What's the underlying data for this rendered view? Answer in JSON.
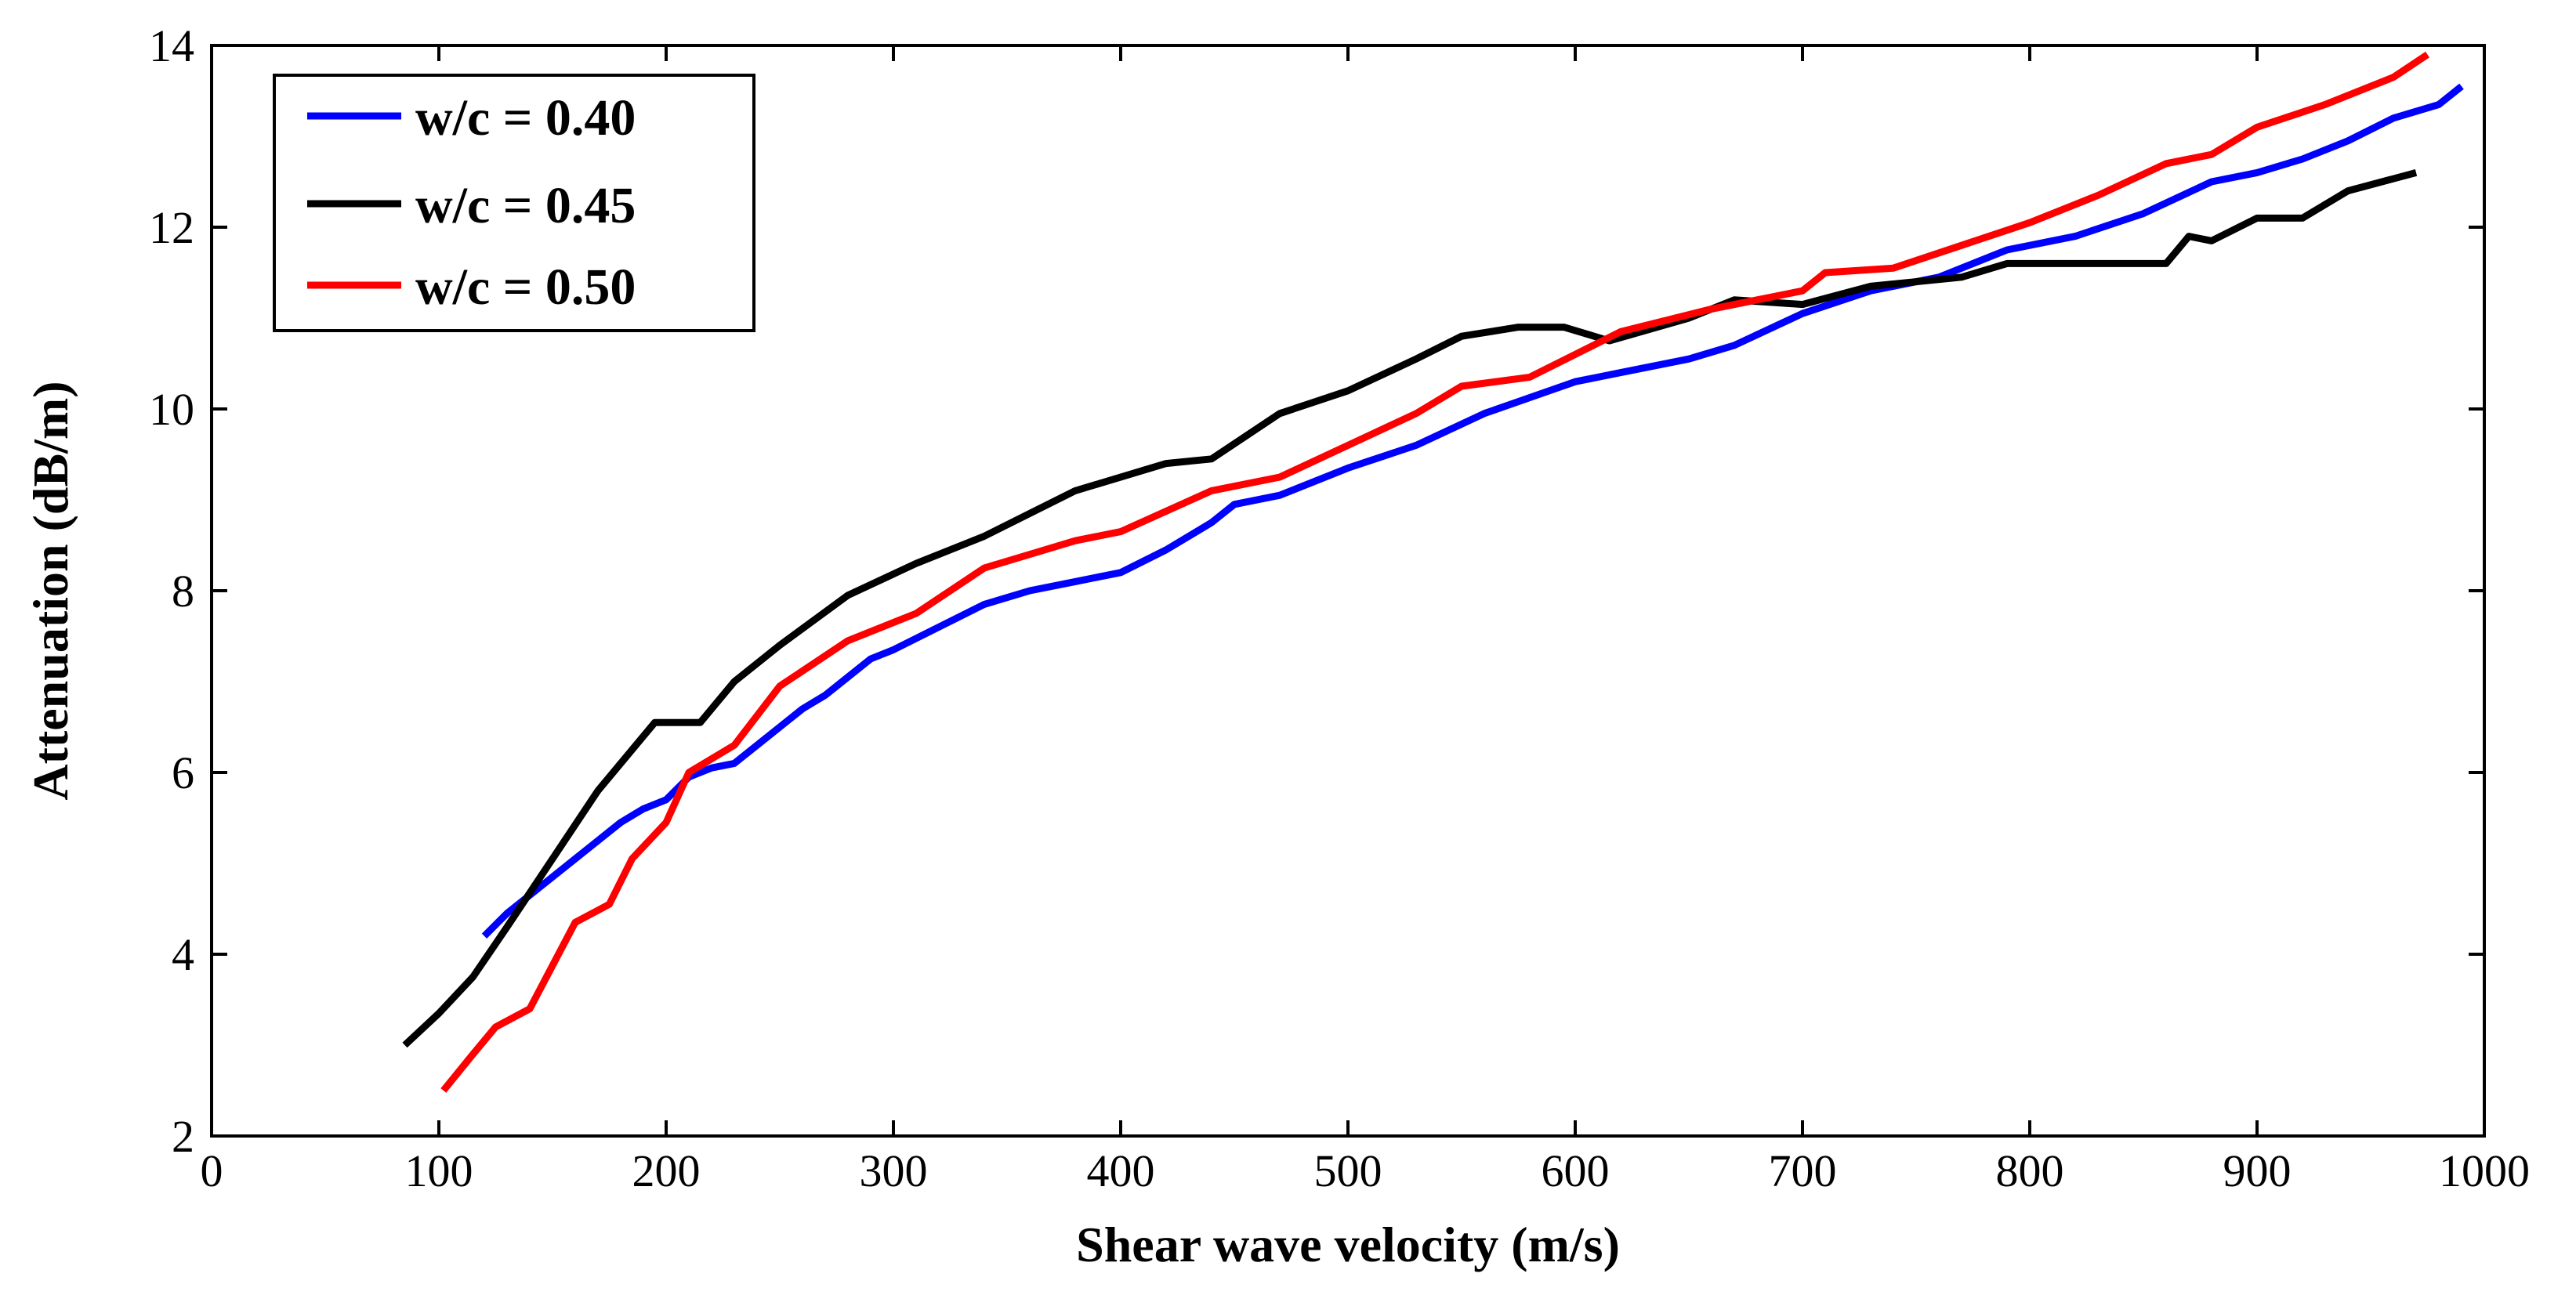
{
  "chart_data": {
    "type": "line",
    "title": "",
    "xlabel": "Shear wave velocity (m/s)",
    "ylabel": "Attenuation (dB/m)",
    "xlim": [
      0,
      1000
    ],
    "ylim": [
      2,
      14
    ],
    "xticks": [
      0,
      100,
      200,
      300,
      400,
      500,
      600,
      700,
      800,
      900,
      1000
    ],
    "yticks": [
      2,
      4,
      6,
      8,
      10,
      12,
      14
    ],
    "grid": false,
    "legend_position": "top-left",
    "series": [
      {
        "name": "w/c = 0.40",
        "color": "#0000ff",
        "x": [
          120,
          130,
          140,
          150,
          160,
          170,
          180,
          190,
          200,
          210,
          220,
          230,
          240,
          250,
          260,
          270,
          280,
          290,
          300,
          320,
          340,
          360,
          380,
          400,
          420,
          440,
          450,
          470,
          500,
          530,
          560,
          600,
          620,
          650,
          670,
          700,
          730,
          760,
          790,
          820,
          850,
          880,
          900,
          920,
          940,
          960,
          980,
          990
        ],
        "y": [
          4.2,
          4.45,
          4.65,
          4.85,
          5.05,
          5.25,
          5.45,
          5.6,
          5.7,
          5.95,
          6.05,
          6.1,
          6.3,
          6.5,
          6.7,
          6.85,
          7.05,
          7.25,
          7.35,
          7.6,
          7.85,
          8.0,
          8.1,
          8.2,
          8.45,
          8.75,
          8.95,
          9.05,
          9.35,
          9.6,
          9.95,
          10.3,
          10.4,
          10.55,
          10.7,
          11.05,
          11.3,
          11.45,
          11.75,
          11.9,
          12.15,
          12.5,
          12.6,
          12.75,
          12.95,
          13.2,
          13.35,
          13.55
        ]
      },
      {
        "name": "w/c = 0.45",
        "color": "#000000",
        "x": [
          85,
          100,
          115,
          130,
          150,
          170,
          195,
          215,
          230,
          250,
          280,
          310,
          340,
          380,
          420,
          440,
          470,
          500,
          530,
          550,
          575,
          595,
          615,
          650,
          670,
          700,
          730,
          770,
          790,
          860,
          870,
          880,
          900,
          920,
          940,
          970
        ],
        "y": [
          3.0,
          3.35,
          3.75,
          4.3,
          5.05,
          5.8,
          6.55,
          6.55,
          7.0,
          7.4,
          7.95,
          8.3,
          8.6,
          9.1,
          9.4,
          9.45,
          9.95,
          10.2,
          10.55,
          10.8,
          10.9,
          10.9,
          10.75,
          11.0,
          11.2,
          11.15,
          11.35,
          11.45,
          11.6,
          11.6,
          11.9,
          11.85,
          12.1,
          12.1,
          12.4,
          12.6
        ]
      },
      {
        "name": "w/c = 0.50",
        "color": "#ff0000",
        "x": [
          102,
          115,
          125,
          140,
          160,
          175,
          185,
          200,
          210,
          230,
          250,
          280,
          310,
          340,
          380,
          400,
          440,
          470,
          500,
          530,
          550,
          580,
          620,
          660,
          700,
          710,
          740,
          770,
          800,
          830,
          860,
          880,
          900,
          930,
          960,
          975
        ],
        "y": [
          2.5,
          2.9,
          3.2,
          3.4,
          4.35,
          4.55,
          5.05,
          5.45,
          6.0,
          6.3,
          6.95,
          7.45,
          7.75,
          8.25,
          8.55,
          8.65,
          9.1,
          9.25,
          9.6,
          9.95,
          10.25,
          10.35,
          10.85,
          11.1,
          11.3,
          11.5,
          11.55,
          11.8,
          12.05,
          12.35,
          12.7,
          12.8,
          13.1,
          13.35,
          13.65,
          13.9
        ]
      }
    ]
  }
}
